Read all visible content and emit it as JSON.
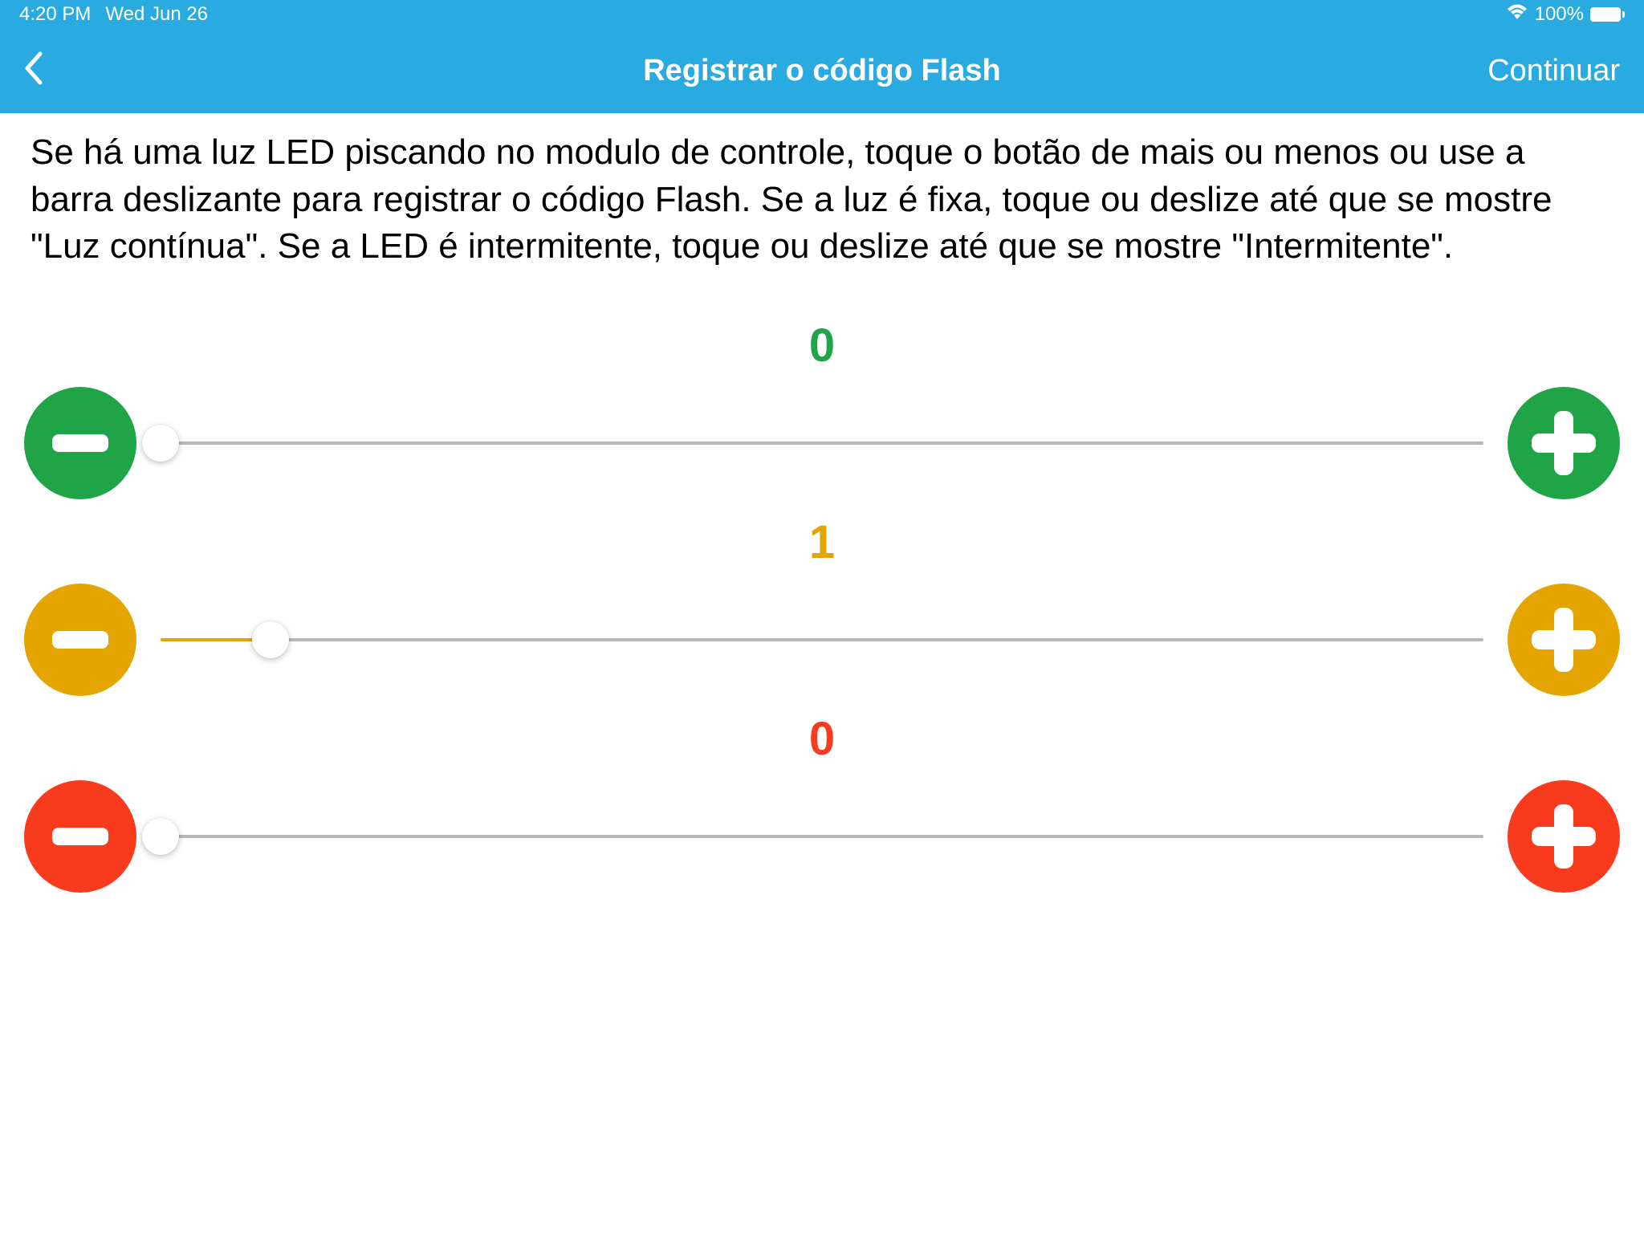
{
  "status_bar": {
    "time": "4:20 PM",
    "date": "Wed Jun 26",
    "battery_percent": "100%"
  },
  "nav": {
    "title": "Registrar o código Flash",
    "continue_label": "Continuar"
  },
  "instructions": "Se há uma luz LED piscando no modulo de controle, toque o botão de mais ou menos ou use a barra deslizante para registrar o código Flash. Se a luz é fixa, toque ou deslize até que se mostre \"Luz contínua\". Se a LED é intermitente, toque ou deslize até que se mostre \"Intermitente\".",
  "sliders": {
    "green": {
      "value": "0",
      "color": "#1fa448",
      "thumb_percent": 0,
      "slider_max": 12
    },
    "yellow": {
      "value": "1",
      "color": "#e5a500",
      "thumb_percent": 8.33,
      "slider_max": 12
    },
    "red": {
      "value": "0",
      "color": "#f83b1d",
      "thumb_percent": 0,
      "slider_max": 12
    }
  },
  "colors": {
    "header_bg": "#29abe2",
    "track": "#b8b8b8",
    "thumb": "#ffffff"
  }
}
